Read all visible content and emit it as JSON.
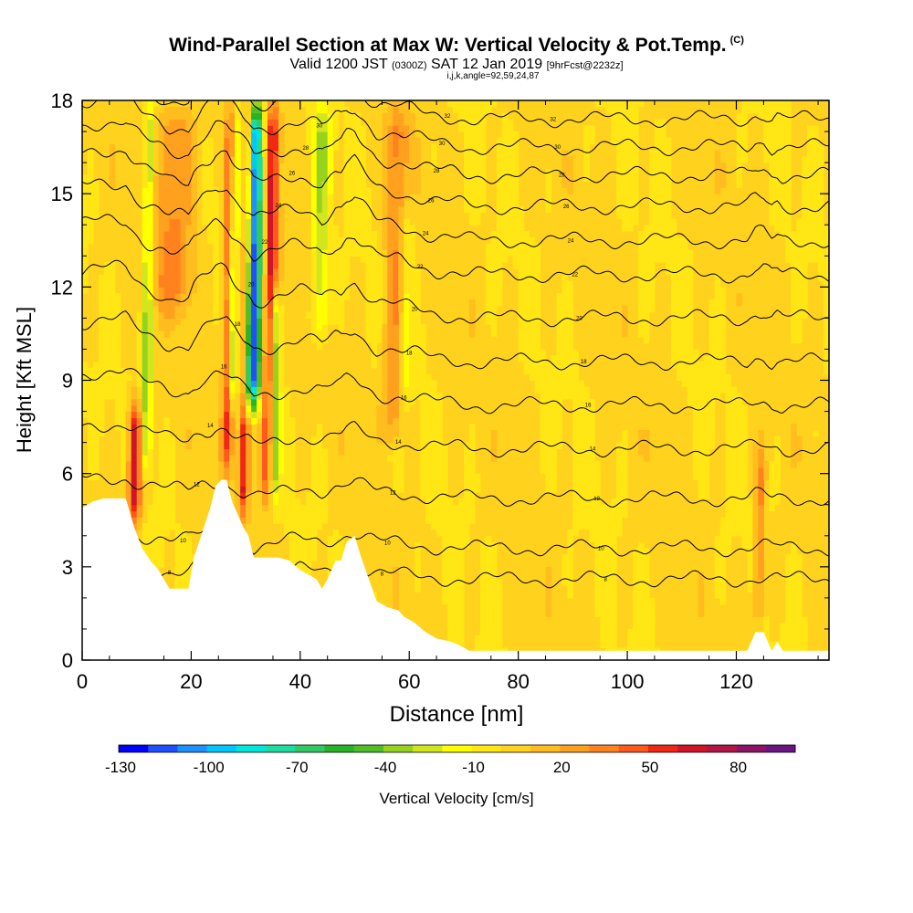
{
  "title": {
    "main": "Wind-Parallel Section at Max W: Vertical Velocity & Pot.Temp.",
    "copyright": "(C)",
    "valid_prefix": "Valid 1200 JST",
    "valid_z": "(0300Z)",
    "valid_date": "SAT 12 Jan 2019",
    "forecast": "[9hrFcst@2232z]",
    "indices": "i,j,k,angle=92,59,24,87"
  },
  "colors": {
    "background_field": "#ffd21e",
    "terrain_mask": "#ffffff",
    "contour": "#000000"
  },
  "chart_data": {
    "type": "heatmap",
    "xlabel": "Distance [nm]",
    "ylabel": "Height [Kft MSL]",
    "xlim": [
      0,
      137
    ],
    "ylim": [
      0,
      18
    ],
    "x_ticks": [
      "0",
      "20",
      "40",
      "60",
      "80",
      "100",
      "120"
    ],
    "y_ticks": [
      "0",
      "3",
      "6",
      "9",
      "12",
      "15",
      "18"
    ],
    "colorbar": {
      "label": "Vertical Velocity [cm/s]",
      "tick_labels": [
        "-130",
        "-100",
        "-70",
        "-40",
        "-10",
        "20",
        "50",
        "80"
      ],
      "levels": [
        -130,
        -120,
        -110,
        -100,
        -90,
        -80,
        -70,
        -60,
        -50,
        -40,
        -30,
        -20,
        -10,
        0,
        10,
        20,
        30,
        40,
        50,
        60,
        70,
        80,
        90
      ],
      "colors": [
        "#0000ff",
        "#1e50ff",
        "#1e90ff",
        "#00c8ff",
        "#00e6dc",
        "#1edca0",
        "#32c864",
        "#28b428",
        "#50be28",
        "#96d21e",
        "#d2e61e",
        "#ffff00",
        "#ffe614",
        "#ffd21e",
        "#ffbe1e",
        "#ffa01e",
        "#ff821e",
        "#ff5a1e",
        "#f02814",
        "#d21428",
        "#b41446",
        "#8c1464",
        "#6e1482"
      ]
    },
    "updrafts": [
      {
        "x": 9.5,
        "ymin": 4.2,
        "ymax": 8.5,
        "w": 70,
        "half_width": 1.2
      },
      {
        "x": 16.5,
        "ymin": 11,
        "ymax": 18,
        "w": 30,
        "half_width": 4.0
      },
      {
        "x": 26.5,
        "ymin": 6,
        "ymax": 18,
        "w": 50,
        "half_width": 1.0
      },
      {
        "x": 29.5,
        "ymin": 4.5,
        "ymax": 18,
        "w": 60,
        "half_width": 0.9
      },
      {
        "x": 34,
        "ymin": 5,
        "ymax": 18,
        "w": 60,
        "half_width": 1.2
      },
      {
        "x": 57,
        "ymin": 7,
        "ymax": 18,
        "w": 30,
        "half_width": 2.0
      },
      {
        "x": 124,
        "ymin": 1,
        "ymax": 7,
        "w": 30,
        "half_width": 1.0
      }
    ],
    "downdrafts": [
      {
        "x": 11.5,
        "ymin": 6,
        "ymax": 18,
        "w": -40,
        "half_width": 1.0
      },
      {
        "x": 27.3,
        "ymin": 8,
        "ymax": 18,
        "w": -50,
        "half_width": 0.7
      },
      {
        "x": 31,
        "ymin": 8,
        "ymax": 18,
        "w": -120,
        "half_width": 1.5
      },
      {
        "x": 35,
        "ymin": 5,
        "ymax": 12,
        "w": -60,
        "half_width": 0.9
      },
      {
        "x": 43.5,
        "ymin": 10,
        "ymax": 18,
        "w": -30,
        "half_width": 1.5
      },
      {
        "x": 59,
        "ymin": 8,
        "ymax": 15,
        "w": -20,
        "half_width": 1.2
      }
    ],
    "terrain": [
      [
        0,
        4.9
      ],
      [
        2,
        5.1
      ],
      [
        4,
        5.2
      ],
      [
        6,
        5.2
      ],
      [
        8,
        5.2
      ],
      [
        9.5,
        4.3
      ],
      [
        11,
        3.6
      ],
      [
        12.5,
        3.2
      ],
      [
        14,
        2.9
      ],
      [
        15,
        2.6
      ],
      [
        16,
        2.3
      ],
      [
        19.5,
        2.3
      ],
      [
        20.5,
        3.3
      ],
      [
        22,
        4.1
      ],
      [
        23.5,
        4.9
      ],
      [
        24.5,
        5.6
      ],
      [
        25.5,
        5.8
      ],
      [
        26.5,
        5.8
      ],
      [
        27.5,
        5.1
      ],
      [
        28.5,
        4.7
      ],
      [
        29.5,
        4.3
      ],
      [
        30.5,
        4.0
      ],
      [
        31.5,
        3.3
      ],
      [
        33,
        3.3
      ],
      [
        36,
        3.3
      ],
      [
        38,
        3.2
      ],
      [
        40,
        2.9
      ],
      [
        42,
        2.7
      ],
      [
        43,
        2.6
      ],
      [
        44,
        2.3
      ],
      [
        45,
        2.6
      ],
      [
        46.5,
        3.2
      ],
      [
        47.5,
        3.2
      ],
      [
        48.5,
        3.8
      ],
      [
        50,
        4.0
      ],
      [
        51,
        3.4
      ],
      [
        52,
        2.9
      ],
      [
        53,
        2.4
      ],
      [
        54,
        1.9
      ],
      [
        56,
        1.7
      ],
      [
        58,
        1.6
      ],
      [
        59,
        1.4
      ],
      [
        61,
        1.2
      ],
      [
        63,
        0.9
      ],
      [
        65,
        0.7
      ],
      [
        67.5,
        0.6
      ],
      [
        69,
        0.5
      ],
      [
        71,
        0.3
      ],
      [
        73,
        0.3
      ],
      [
        80,
        0.3
      ],
      [
        90,
        0.3
      ],
      [
        100,
        0.3
      ],
      [
        110,
        0.3
      ],
      [
        118,
        0.3
      ],
      [
        122,
        0.3
      ],
      [
        123.5,
        0.9
      ],
      [
        125,
        0.9
      ],
      [
        126.5,
        0.3
      ],
      [
        127.5,
        0.6
      ],
      [
        128.5,
        0.3
      ],
      [
        137,
        0.3
      ]
    ],
    "theta_contours": [
      {
        "label": "8",
        "base": 2.6,
        "hill_amp": 0.45
      },
      {
        "label": "10",
        "base": 3.6,
        "hill_amp": 0.5
      },
      {
        "label": "12",
        "base": 5.2,
        "hill_amp": 0.55
      },
      {
        "label": "14",
        "base": 6.8,
        "hill_amp": 0.65
      },
      {
        "label": "16",
        "base": 8.2,
        "hill_amp": 0.9
      },
      {
        "label": "18",
        "base": 9.6,
        "hill_amp": 1.1
      },
      {
        "label": "20",
        "base": 11.0,
        "hill_amp": 1.3
      },
      {
        "label": "22",
        "base": 12.4,
        "hill_amp": 1.4
      },
      {
        "label": "24",
        "base": 13.5,
        "hill_amp": 1.5
      },
      {
        "label": "26",
        "base": 14.6,
        "hill_amp": 1.5
      },
      {
        "label": "28",
        "base": 15.6,
        "hill_amp": 1.4
      },
      {
        "label": "30",
        "base": 16.5,
        "hill_amp": 1.3
      },
      {
        "label": "32",
        "base": 17.4,
        "hill_amp": 1.2
      }
    ]
  }
}
